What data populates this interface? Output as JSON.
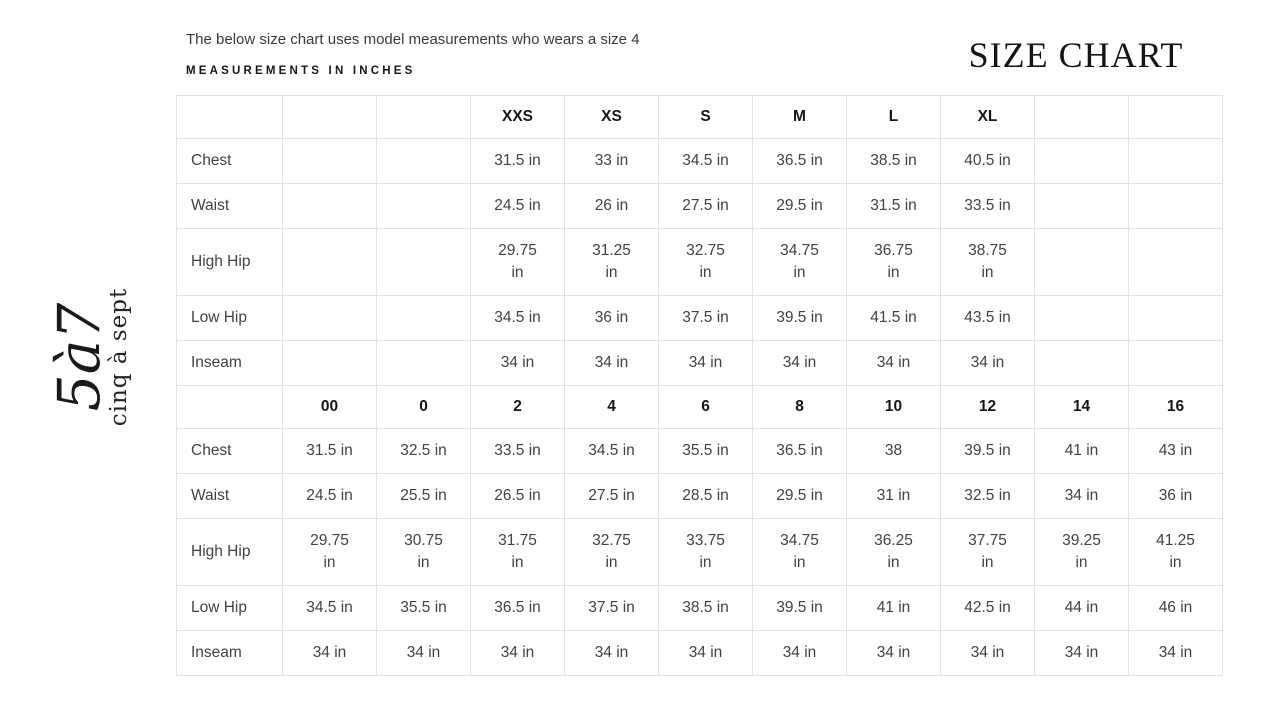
{
  "header": {
    "note": "The below size chart uses model measurements who wears a size 4",
    "units_label": "MEASUREMENTS IN INCHES",
    "title": "SIZE CHART"
  },
  "logo": {
    "monogram": "5à7",
    "brand": "cinq à sept"
  },
  "table": {
    "sections": [
      {
        "header": [
          "",
          "",
          "",
          "XXS",
          "XS",
          "S",
          "M",
          "L",
          "XL",
          "",
          ""
        ],
        "rows": [
          {
            "label": "Chest",
            "values": [
              "",
              "",
              "31.5 in",
              "33 in",
              "34.5 in",
              "36.5 in",
              "38.5 in",
              "40.5 in",
              "",
              ""
            ]
          },
          {
            "label": "Waist",
            "values": [
              "",
              "",
              "24.5 in",
              "26 in",
              "27.5 in",
              "29.5 in",
              "31.5 in",
              "33.5 in",
              "",
              ""
            ]
          },
          {
            "label": "High Hip",
            "values": [
              "",
              "",
              "29.75 in",
              "31.25 in",
              "32.75 in",
              "34.75 in",
              "36.75 in",
              "38.75 in",
              "",
              ""
            ]
          },
          {
            "label": "Low Hip",
            "values": [
              "",
              "",
              "34.5 in",
              "36 in",
              "37.5 in",
              "39.5 in",
              "41.5 in",
              "43.5 in",
              "",
              ""
            ]
          },
          {
            "label": "Inseam",
            "values": [
              "",
              "",
              "34 in",
              "34 in",
              "34 in",
              "34 in",
              "34 in",
              "34 in",
              "",
              ""
            ]
          }
        ]
      },
      {
        "header": [
          "",
          "00",
          "0",
          "2",
          "4",
          "6",
          "8",
          "10",
          "12",
          "14",
          "16"
        ],
        "rows": [
          {
            "label": "Chest",
            "values": [
              "31.5 in",
              "32.5 in",
              "33.5 in",
              "34.5 in",
              "35.5 in",
              "36.5 in",
              "38",
              "39.5 in",
              "41 in",
              "43 in"
            ]
          },
          {
            "label": "Waist",
            "values": [
              "24.5 in",
              "25.5 in",
              "26.5 in",
              "27.5 in",
              "28.5 in",
              "29.5 in",
              "31 in",
              "32.5 in",
              "34 in",
              "36 in"
            ]
          },
          {
            "label": "High Hip",
            "values": [
              "29.75 in",
              "30.75 in",
              "31.75 in",
              "32.75 in",
              "33.75 in",
              "34.75 in",
              "36.25 in",
              "37.75 in",
              "39.25 in",
              "41.25 in"
            ]
          },
          {
            "label": "Low Hip",
            "values": [
              "34.5 in",
              "35.5 in",
              "36.5 in",
              "37.5 in",
              "38.5 in",
              "39.5 in",
              "41 in",
              "42.5 in",
              "44 in",
              "46 in"
            ]
          },
          {
            "label": "Inseam",
            "values": [
              "34 in",
              "34 in",
              "34 in",
              "34 in",
              "34 in",
              "34 in",
              "34 in",
              "34 in",
              "34 in",
              "34 in"
            ]
          }
        ]
      }
    ]
  }
}
